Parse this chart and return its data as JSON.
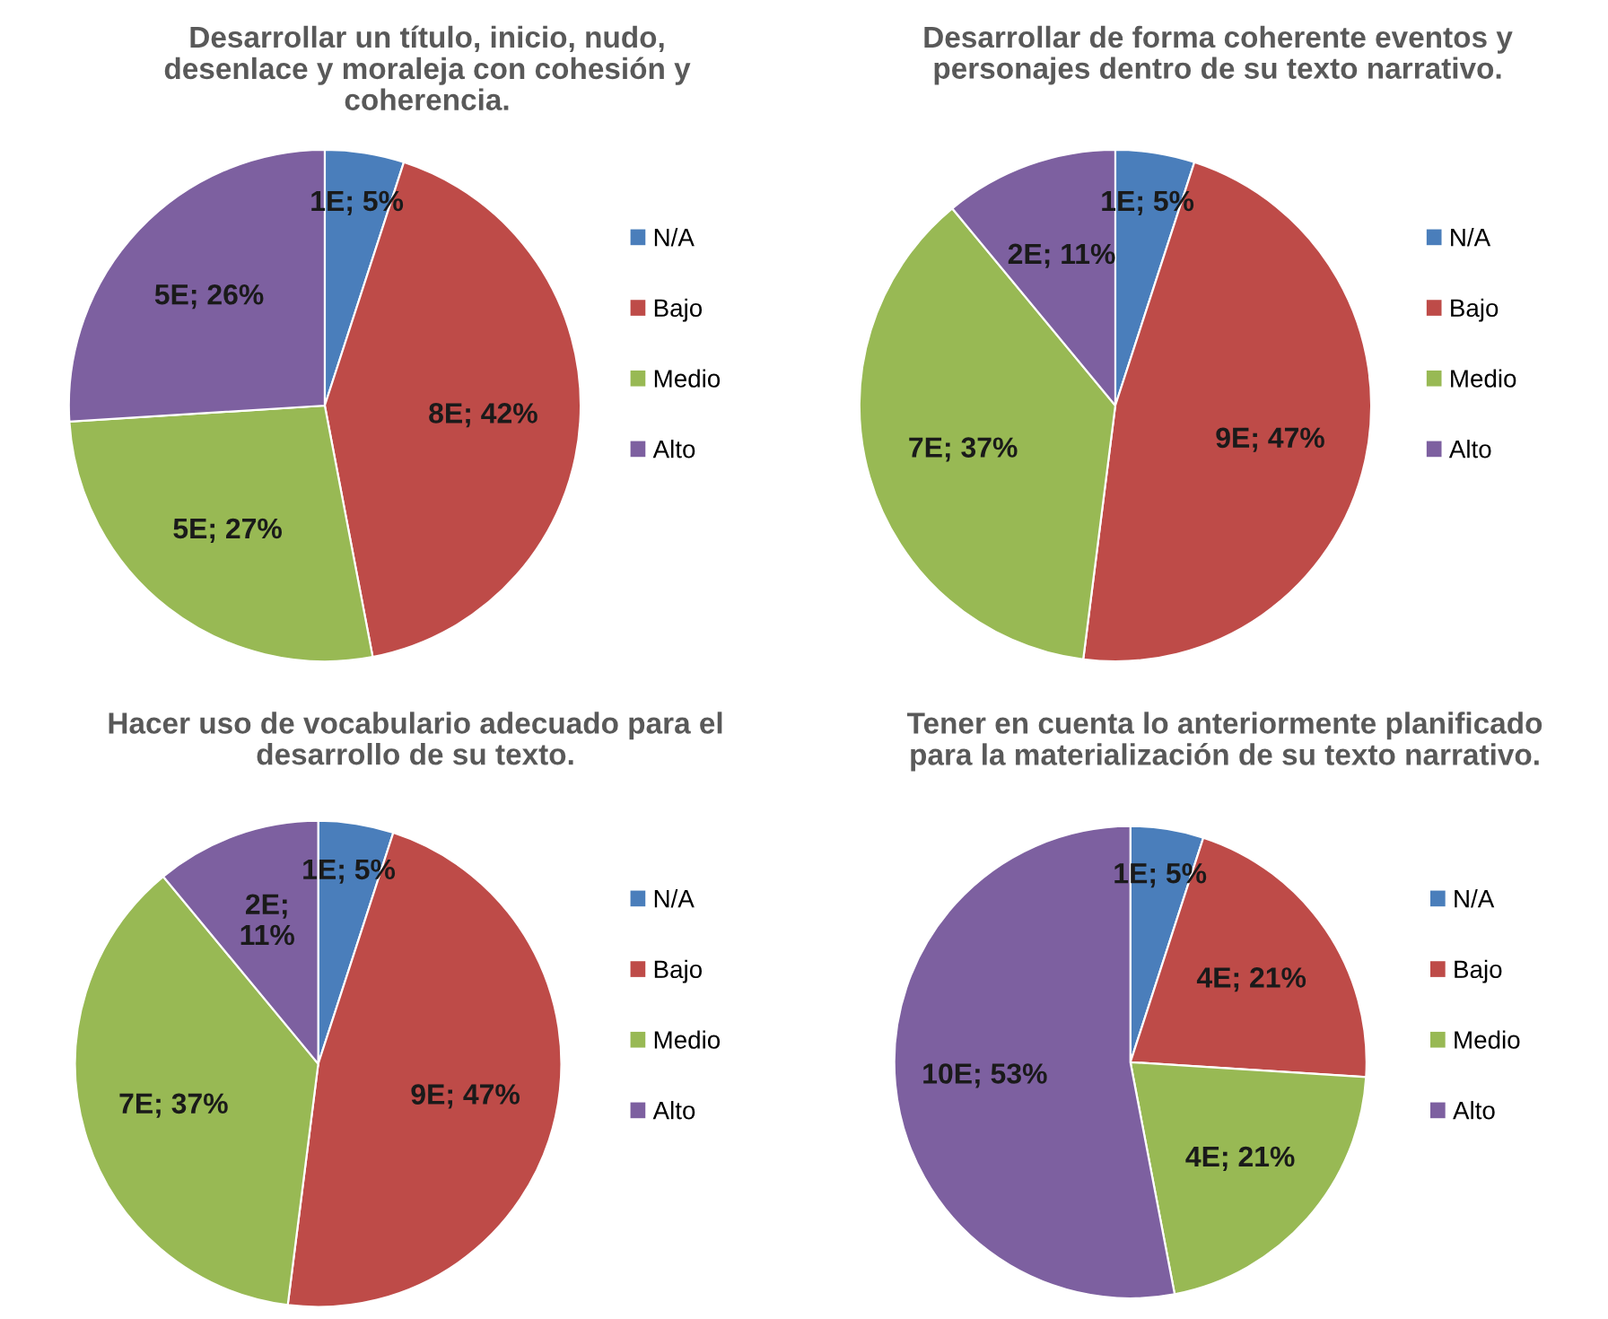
{
  "chart_data": [
    {
      "type": "pie",
      "title": "Desarrollar un título, inicio, nudo,\ndesenlace y moraleja con cohesión y\ncoherencia.",
      "categories": [
        "N/A",
        "Bajo",
        "Medio",
        "Alto"
      ],
      "values": [
        5,
        42,
        27,
        26
      ],
      "colors": [
        "#4a7ebb",
        "#be4b48",
        "#98b954",
        "#7d60a0"
      ],
      "value_labels": [
        "1E; 5%",
        "8E; 42%",
        "5E; 27%",
        "5E; 26%"
      ],
      "legend": "right"
    },
    {
      "type": "pie",
      "title": "Desarrollar de forma coherente eventos y\npersonajes dentro de su texto narrativo.",
      "categories": [
        "N/A",
        "Bajo",
        "Medio",
        "Alto"
      ],
      "values": [
        5,
        47,
        37,
        11
      ],
      "colors": [
        "#4a7ebb",
        "#be4b48",
        "#98b954",
        "#7d60a0"
      ],
      "value_labels": [
        "1E; 5%",
        "9E; 47%",
        "7E; 37%",
        "2E; 11%"
      ],
      "legend": "right"
    },
    {
      "type": "pie",
      "title": "Hacer uso de vocabulario adecuado para el\ndesarrollo de su texto.",
      "categories": [
        "N/A",
        "Bajo",
        "Medio",
        "Alto"
      ],
      "values": [
        5,
        47,
        37,
        11
      ],
      "colors": [
        "#4a7ebb",
        "#be4b48",
        "#98b954",
        "#7d60a0"
      ],
      "value_labels": [
        "1E; 5%",
        "9E; 47%",
        "7E; 37%",
        "2E;\n11%"
      ],
      "legend": "right"
    },
    {
      "type": "pie",
      "title": "Tener en cuenta lo anteriormente planificado\npara la materialización de su texto narrativo.",
      "categories": [
        "N/A",
        "Bajo",
        "Medio",
        "Alto"
      ],
      "values": [
        5,
        21,
        21,
        53
      ],
      "colors": [
        "#4a7ebb",
        "#be4b48",
        "#98b954",
        "#7d60a0"
      ],
      "value_labels": [
        "1E; 5%",
        "4E; 21%",
        "4E; 21%",
        "10E; 53%"
      ],
      "legend": "right"
    }
  ]
}
